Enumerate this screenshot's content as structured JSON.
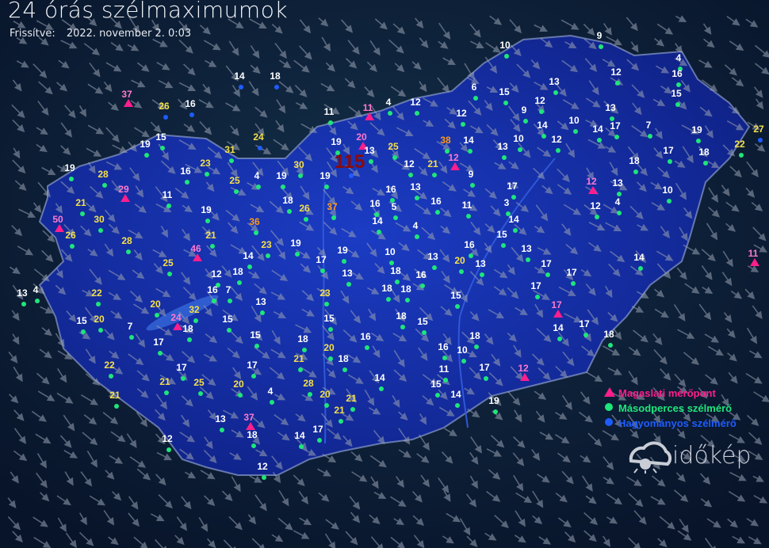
{
  "header": {
    "title": "24 órás szélmaximumok",
    "updated_label": "Frissítve:",
    "updated_value": "2022. november 2. 0:03"
  },
  "legend": {
    "items": [
      {
        "label": "Magaslati mérőpont",
        "symbol": "triangle",
        "color": "#ff1e8c"
      },
      {
        "label": "Másodperces szélmérő",
        "symbol": "dot",
        "color": "#1ee67a"
      },
      {
        "label": "Hagyományos szélmérő",
        "symbol": "dot",
        "color": "#1f5cff"
      }
    ]
  },
  "brand": {
    "name": "időkép"
  },
  "colors": {
    "background": "#0d2233",
    "country_fill": "#1530a8",
    "label_low": "#ffffff",
    "label_mid": "#f5e04a",
    "label_high": "#ff9a1e",
    "label_peak": "#8b0a0a",
    "arrow": "#9aa3b4"
  },
  "stations": [
    {
      "v": "37",
      "t": "m"
    },
    {
      "v": "26",
      "t": "h"
    },
    {
      "v": "16",
      "t": "h"
    },
    {
      "v": "14",
      "t": "h"
    },
    {
      "v": "18",
      "t": "h"
    },
    {
      "v": "19",
      "t": "g"
    },
    {
      "v": "15",
      "t": "g"
    },
    {
      "v": "23",
      "t": "g"
    },
    {
      "v": "31",
      "t": "g"
    },
    {
      "v": "24",
      "t": "h"
    },
    {
      "v": "16",
      "t": "g"
    },
    {
      "v": "25",
      "t": "g"
    },
    {
      "v": "4",
      "t": "g"
    },
    {
      "v": "19",
      "t": "g"
    },
    {
      "v": "30",
      "t": "g"
    },
    {
      "v": "11",
      "t": "g"
    },
    {
      "v": "11",
      "t": "m"
    },
    {
      "v": "4",
      "t": "g"
    },
    {
      "v": "12",
      "t": "g"
    },
    {
      "v": "19",
      "t": "g"
    },
    {
      "v": "20",
      "t": "m"
    },
    {
      "v": "25",
      "t": "g"
    },
    {
      "v": "13",
      "t": "g"
    },
    {
      "v": "115",
      "t": "h"
    },
    {
      "v": "12",
      "t": "g"
    },
    {
      "v": "21",
      "t": "g"
    },
    {
      "v": "38",
      "t": "g"
    },
    {
      "v": "12",
      "t": "m"
    },
    {
      "v": "14",
      "t": "g"
    },
    {
      "v": "9",
      "t": "g"
    },
    {
      "v": "12",
      "t": "g"
    },
    {
      "v": "6",
      "t": "g"
    },
    {
      "v": "15",
      "t": "g"
    },
    {
      "v": "10",
      "t": "g"
    },
    {
      "v": "13",
      "t": "g"
    },
    {
      "v": "12",
      "t": "g"
    },
    {
      "v": "9",
      "t": "g"
    },
    {
      "v": "14",
      "t": "g"
    },
    {
      "v": "10",
      "t": "g"
    },
    {
      "v": "12",
      "t": "g"
    },
    {
      "v": "9",
      "t": "g"
    },
    {
      "v": "12",
      "t": "g"
    },
    {
      "v": "14",
      "t": "g"
    },
    {
      "v": "17",
      "t": "g"
    },
    {
      "v": "13",
      "t": "g"
    },
    {
      "v": "7",
      "t": "g"
    },
    {
      "v": "4",
      "t": "g"
    },
    {
      "v": "16",
      "t": "g"
    },
    {
      "v": "15",
      "t": "g"
    },
    {
      "v": "19",
      "t": "g"
    },
    {
      "v": "18",
      "t": "g"
    },
    {
      "v": "17",
      "t": "g"
    },
    {
      "v": "22",
      "t": "g"
    },
    {
      "v": "27",
      "t": "h"
    },
    {
      "v": "18",
      "t": "g"
    },
    {
      "v": "12",
      "t": "m"
    },
    {
      "v": "13",
      "t": "g"
    },
    {
      "v": "12",
      "t": "g"
    },
    {
      "v": "4",
      "t": "g"
    },
    {
      "v": "10",
      "t": "g"
    },
    {
      "v": "11",
      "t": "m"
    },
    {
      "v": "13",
      "t": "g"
    },
    {
      "v": "10",
      "t": "g"
    },
    {
      "v": "17",
      "t": "g"
    },
    {
      "v": "3",
      "t": "g"
    },
    {
      "v": "14",
      "t": "g"
    },
    {
      "v": "15",
      "t": "g"
    },
    {
      "v": "11",
      "t": "g"
    },
    {
      "v": "16",
      "t": "g"
    },
    {
      "v": "13",
      "t": "g"
    },
    {
      "v": "16",
      "t": "g"
    },
    {
      "v": "5",
      "t": "g"
    },
    {
      "v": "16",
      "t": "g"
    },
    {
      "v": "14",
      "t": "g"
    },
    {
      "v": "4",
      "t": "g"
    },
    {
      "v": "19",
      "t": "g"
    },
    {
      "v": "37",
      "t": "g"
    },
    {
      "v": "26",
      "t": "g"
    },
    {
      "v": "18",
      "t": "g"
    },
    {
      "v": "36",
      "t": "g"
    },
    {
      "v": "19",
      "t": "g"
    },
    {
      "v": "11",
      "t": "g"
    },
    {
      "v": "29",
      "t": "m"
    },
    {
      "v": "21",
      "t": "g"
    },
    {
      "v": "28",
      "t": "g"
    },
    {
      "v": "19",
      "t": "g"
    },
    {
      "v": "50",
      "t": "m"
    },
    {
      "v": "30",
      "t": "g"
    },
    {
      "v": "26",
      "t": "g"
    },
    {
      "v": "28",
      "t": "g"
    },
    {
      "v": "21",
      "t": "g"
    },
    {
      "v": "46",
      "t": "m"
    },
    {
      "v": "14",
      "t": "g"
    },
    {
      "v": "23",
      "t": "g"
    },
    {
      "v": "19",
      "t": "g"
    },
    {
      "v": "17",
      "t": "g"
    },
    {
      "v": "19",
      "t": "g"
    },
    {
      "v": "10",
      "t": "g"
    },
    {
      "v": "13",
      "t": "g"
    },
    {
      "v": "20",
      "t": "g"
    },
    {
      "v": "16",
      "t": "g"
    },
    {
      "v": "13",
      "t": "g"
    },
    {
      "v": "13",
      "t": "g"
    },
    {
      "v": "17",
      "t": "g"
    },
    {
      "v": "17",
      "t": "g"
    },
    {
      "v": "14",
      "t": "g"
    },
    {
      "v": "18",
      "t": "g"
    },
    {
      "v": "16",
      "t": "g"
    },
    {
      "v": "13",
      "t": "g"
    },
    {
      "v": "18",
      "t": "g"
    },
    {
      "v": "25",
      "t": "g"
    },
    {
      "v": "12",
      "t": "g"
    },
    {
      "v": "7",
      "t": "g"
    },
    {
      "v": "16",
      "t": "g"
    },
    {
      "v": "13",
      "t": "g"
    },
    {
      "v": "23",
      "t": "g"
    },
    {
      "v": "18",
      "t": "g"
    },
    {
      "v": "18",
      "t": "g"
    },
    {
      "v": "15",
      "t": "g"
    },
    {
      "v": "17",
      "t": "g"
    },
    {
      "v": "17",
      "t": "m"
    },
    {
      "v": "14",
      "t": "g"
    },
    {
      "v": "17",
      "t": "g"
    },
    {
      "v": "18",
      "t": "g"
    },
    {
      "v": "22",
      "t": "g"
    },
    {
      "v": "20",
      "t": "g"
    },
    {
      "v": "32",
      "t": "g"
    },
    {
      "v": "24",
      "t": "m"
    },
    {
      "v": "18",
      "t": "g"
    },
    {
      "v": "7",
      "t": "g"
    },
    {
      "v": "20",
      "t": "g"
    },
    {
      "v": "15",
      "t": "g"
    },
    {
      "v": "4",
      "t": "g"
    },
    {
      "v": "13",
      "t": "g"
    },
    {
      "v": "15",
      "t": "g"
    },
    {
      "v": "18",
      "t": "g"
    },
    {
      "v": "15",
      "t": "g"
    },
    {
      "v": "15",
      "t": "g"
    },
    {
      "v": "15",
      "t": "g"
    },
    {
      "v": "18",
      "t": "g"
    },
    {
      "v": "20",
      "t": "g"
    },
    {
      "v": "16",
      "t": "g"
    },
    {
      "v": "18",
      "t": "g"
    },
    {
      "v": "21",
      "t": "g"
    },
    {
      "v": "17",
      "t": "g"
    },
    {
      "v": "22",
      "t": "g"
    },
    {
      "v": "17",
      "t": "g"
    },
    {
      "v": "17",
      "t": "g"
    },
    {
      "v": "18",
      "t": "g"
    },
    {
      "v": "10",
      "t": "g"
    },
    {
      "v": "16",
      "t": "g"
    },
    {
      "v": "17",
      "t": "g"
    },
    {
      "v": "12",
      "t": "m"
    },
    {
      "v": "11",
      "t": "g"
    },
    {
      "v": "15",
      "t": "g"
    },
    {
      "v": "14",
      "t": "g"
    },
    {
      "v": "21",
      "t": "g"
    },
    {
      "v": "25",
      "t": "g"
    },
    {
      "v": "20",
      "t": "g"
    },
    {
      "v": "4",
      "t": "g"
    },
    {
      "v": "28",
      "t": "g"
    },
    {
      "v": "20",
      "t": "g"
    },
    {
      "v": "21",
      "t": "g"
    },
    {
      "v": "21",
      "t": "g"
    },
    {
      "v": "14",
      "t": "g"
    },
    {
      "v": "19",
      "t": "g"
    },
    {
      "v": "21",
      "t": "g"
    },
    {
      "v": "13",
      "t": "g"
    },
    {
      "v": "37",
      "t": "m"
    },
    {
      "v": "18",
      "t": "g"
    },
    {
      "v": "14",
      "t": "g"
    },
    {
      "v": "17",
      "t": "g"
    },
    {
      "v": "12",
      "t": "g"
    },
    {
      "v": "12",
      "t": "g"
    }
  ]
}
